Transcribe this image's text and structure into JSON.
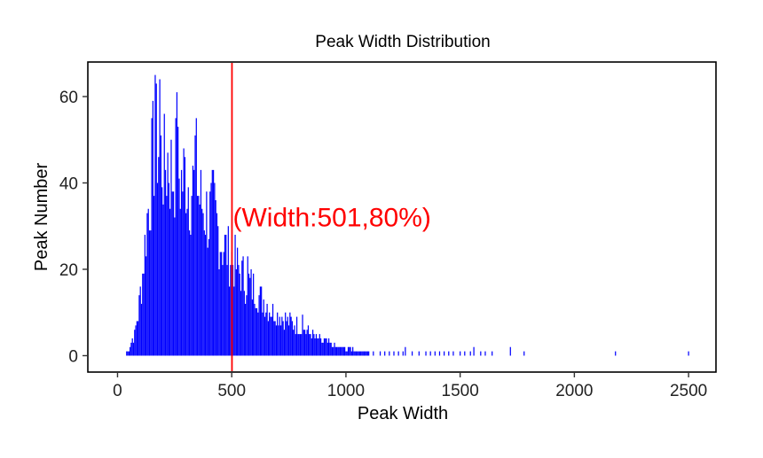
{
  "chart_data": {
    "type": "bar",
    "title": "Peak Width Distribution",
    "xlabel": "Peak Width",
    "ylabel": "Peak Number",
    "xlim": [
      -130,
      2620
    ],
    "ylim": [
      -3.8,
      68
    ],
    "x_ticks": [
      0,
      500,
      1000,
      1500,
      2000,
      2500
    ],
    "y_ticks": [
      0,
      20,
      40,
      60
    ],
    "grid": false,
    "bar_color": "#0000ff",
    "marker_line": {
      "x": 501,
      "color": "#ff0000"
    },
    "annotation": {
      "text": "(Width:501,80%)",
      "x": 505,
      "y": 32,
      "color": "#ff0000"
    },
    "histogram": {
      "bin_width": 5,
      "keypoints": [
        [
          40,
          1
        ],
        [
          55,
          3
        ],
        [
          75,
          6
        ],
        [
          90,
          12
        ],
        [
          100,
          18
        ],
        [
          110,
          24
        ],
        [
          120,
          32
        ],
        [
          130,
          40
        ],
        [
          140,
          46
        ],
        [
          150,
          54
        ],
        [
          160,
          60
        ],
        [
          175,
          62
        ],
        [
          190,
          58
        ],
        [
          205,
          54
        ],
        [
          220,
          57
        ],
        [
          240,
          52
        ],
        [
          260,
          55
        ],
        [
          280,
          50
        ],
        [
          300,
          53
        ],
        [
          320,
          48
        ],
        [
          340,
          50
        ],
        [
          360,
          45
        ],
        [
          380,
          43
        ],
        [
          400,
          40
        ],
        [
          420,
          42
        ],
        [
          440,
          36
        ],
        [
          460,
          32
        ],
        [
          480,
          30
        ],
        [
          500,
          28
        ],
        [
          520,
          26
        ],
        [
          540,
          24
        ],
        [
          560,
          22
        ],
        [
          580,
          21
        ],
        [
          600,
          19
        ],
        [
          625,
          17
        ],
        [
          650,
          15
        ],
        [
          675,
          13
        ],
        [
          700,
          12
        ],
        [
          725,
          11
        ],
        [
          750,
          10
        ],
        [
          775,
          9
        ],
        [
          800,
          8
        ],
        [
          825,
          7
        ],
        [
          850,
          6
        ],
        [
          875,
          5
        ],
        [
          900,
          4
        ],
        [
          925,
          3.5
        ],
        [
          950,
          3
        ],
        [
          975,
          2.5
        ],
        [
          1000,
          2
        ],
        [
          1025,
          2
        ],
        [
          1050,
          1.5
        ],
        [
          1100,
          1
        ]
      ],
      "spikes": [
        [
          165,
          65
        ],
        [
          185,
          64
        ],
        [
          260,
          61
        ],
        [
          345,
          55
        ],
        [
          570,
          23
        ],
        [
          810,
          9.5
        ]
      ],
      "sparse": [
        [
          1120,
          1
        ],
        [
          1150,
          1
        ],
        [
          1170,
          1
        ],
        [
          1190,
          1
        ],
        [
          1210,
          1
        ],
        [
          1230,
          1
        ],
        [
          1250,
          1
        ],
        [
          1260,
          2
        ],
        [
          1290,
          1
        ],
        [
          1320,
          1
        ],
        [
          1350,
          1
        ],
        [
          1370,
          1
        ],
        [
          1390,
          1
        ],
        [
          1410,
          1
        ],
        [
          1430,
          1
        ],
        [
          1450,
          1
        ],
        [
          1470,
          1
        ],
        [
          1500,
          1
        ],
        [
          1520,
          1
        ],
        [
          1545,
          1
        ],
        [
          1560,
          2
        ],
        [
          1590,
          1
        ],
        [
          1610,
          1
        ],
        [
          1640,
          1
        ],
        [
          1720,
          2
        ],
        [
          1780,
          1
        ],
        [
          2180,
          1
        ],
        [
          2500,
          1
        ]
      ]
    }
  }
}
